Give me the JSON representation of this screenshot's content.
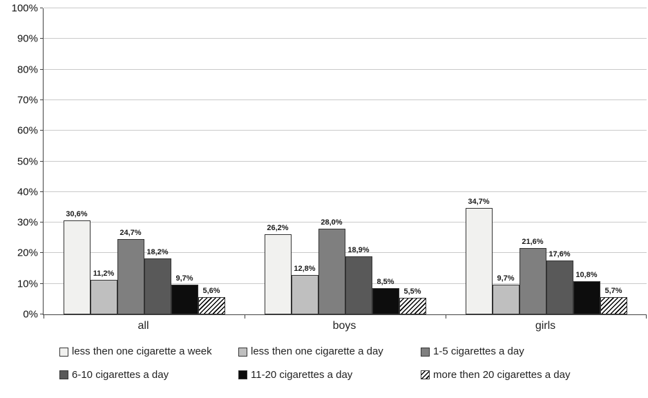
{
  "chart_data": {
    "type": "bar",
    "title": "",
    "xlabel": "",
    "ylabel": "",
    "categories": [
      "all",
      "boys",
      "girls"
    ],
    "series": [
      {
        "name": "less then one cigarette a week",
        "fill": "#f1f1ef",
        "pattern": "solid",
        "values": [
          30.6,
          26.2,
          34.7
        ],
        "labels": [
          "30,6%",
          "26,2%",
          "34,7%"
        ]
      },
      {
        "name": "less then one cigarette a day",
        "fill": "#bfbfbf",
        "pattern": "solid",
        "values": [
          11.2,
          12.8,
          9.7
        ],
        "labels": [
          "11,2%",
          "12,8%",
          "9,7%"
        ]
      },
      {
        "name": "1-5 cigarettes a day",
        "fill": "#7f7f7f",
        "pattern": "solid",
        "values": [
          24.7,
          28.0,
          21.6
        ],
        "labels": [
          "24,7%",
          "28,0%",
          "21,6%"
        ]
      },
      {
        "name": "6-10 cigarettes a day",
        "fill": "#595959",
        "pattern": "solid",
        "values": [
          18.2,
          18.9,
          17.6
        ],
        "labels": [
          "18,2%",
          "18,9%",
          "17,6%"
        ]
      },
      {
        "name": "11-20 cigarettes a day",
        "fill": "#0d0d0d",
        "pattern": "solid",
        "values": [
          9.7,
          8.5,
          10.8
        ],
        "labels": [
          "9,7%",
          "8,5%",
          "10,8%"
        ]
      },
      {
        "name": "more then 20 cigarettes a day",
        "fill": "#ffffff",
        "pattern": "diagonal-hatch",
        "pattern_color": "#000000",
        "values": [
          5.6,
          5.5,
          5.7
        ],
        "labels": [
          "5,6%",
          "5,5%",
          "5,7%"
        ]
      }
    ],
    "ylim": [
      0,
      100
    ],
    "ytick_step": 10,
    "ytick_labels": [
      "0%",
      "10%",
      "20%",
      "30%",
      "40%",
      "50%",
      "60%",
      "70%",
      "80%",
      "90%",
      "100%"
    ],
    "grid": true,
    "legend_position": "bottom",
    "colors": {
      "axis": "#404040",
      "gridline": "#c9c9c9",
      "bar_border": "#333333",
      "text": "#1a1a1a"
    }
  }
}
